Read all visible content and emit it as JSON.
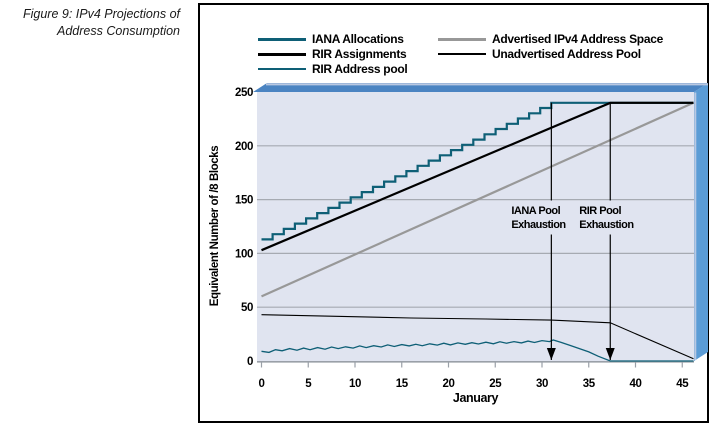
{
  "figure": {
    "caption_line1": "Figure 9: IPv4 Projections of",
    "caption_line2": "Address Consumption"
  },
  "legend": {
    "position": "top",
    "items": [
      {
        "label": "IANA Allocations",
        "color": "#0e5f76",
        "thickness": 3
      },
      {
        "label": "RIR Assignments",
        "color": "#000000",
        "thickness": 3
      },
      {
        "label": "RIR Address pool",
        "color": "#0e5f76",
        "thickness": 1.5
      },
      {
        "label": "Advertised IPv4 Address Space",
        "color": "#989898",
        "thickness": 3
      },
      {
        "label": "Unadvertised Address Pool",
        "color": "#000000",
        "thickness": 1.5
      }
    ]
  },
  "chart_data": {
    "type": "line",
    "title": "",
    "xlabel": "January",
    "ylabel": "Equivalent Number of /8 Blocks",
    "xlim": [
      0,
      46.2
    ],
    "ylim": [
      0,
      250
    ],
    "x_ticks": [
      0,
      5,
      10,
      15,
      20,
      25,
      30,
      35,
      40,
      45
    ],
    "y_ticks": [
      0,
      50,
      100,
      150,
      200,
      250
    ],
    "grid": "horizontal",
    "legend_position": "top",
    "plot_bg": "#e0e4f0",
    "grid_color": "#a6aab2",
    "axis_color": "#9aa0a8",
    "frame_top_color": "#4b84c2",
    "frame_right_color": "#5b9cd6",
    "frame_light_color": "#b9c8e2",
    "series": [
      {
        "name": "Advertised IPv4 Address Space",
        "color": "#989898",
        "width": 2.2,
        "style": "line",
        "points": [
          [
            0,
            60
          ],
          [
            46.2,
            240
          ]
        ]
      },
      {
        "name": "Unadvertised Address Pool",
        "color": "#000000",
        "width": 1.1,
        "style": "line",
        "points": [
          [
            0,
            43
          ],
          [
            8,
            41.5
          ],
          [
            16,
            40
          ],
          [
            24,
            39
          ],
          [
            31,
            38
          ],
          [
            37.3,
            35.5
          ],
          [
            46.2,
            2
          ]
        ]
      },
      {
        "name": "RIR Address pool",
        "color": "#0e5f76",
        "width": 1.3,
        "style": "line",
        "points": [
          [
            0,
            9
          ],
          [
            0.8,
            8
          ],
          [
            1.5,
            10.5
          ],
          [
            2.2,
            9.5
          ],
          [
            3,
            11.5
          ],
          [
            3.8,
            10
          ],
          [
            4.5,
            12
          ],
          [
            5.2,
            10.5
          ],
          [
            6,
            12.5
          ],
          [
            6.8,
            11
          ],
          [
            7.5,
            13
          ],
          [
            8.2,
            11.5
          ],
          [
            9,
            13.2
          ],
          [
            9.8,
            12
          ],
          [
            10.5,
            14
          ],
          [
            11.2,
            12.5
          ],
          [
            12,
            14.2
          ],
          [
            12.8,
            13
          ],
          [
            13.5,
            15
          ],
          [
            14.2,
            13.5
          ],
          [
            15,
            15.2
          ],
          [
            15.8,
            14
          ],
          [
            16.5,
            15.5
          ],
          [
            17.2,
            14.2
          ],
          [
            18,
            16
          ],
          [
            18.8,
            14.8
          ],
          [
            19.5,
            16.5
          ],
          [
            20.2,
            15
          ],
          [
            21,
            16.8
          ],
          [
            21.8,
            15.5
          ],
          [
            22.5,
            17
          ],
          [
            23.2,
            15.8
          ],
          [
            24,
            17.5
          ],
          [
            24.8,
            16
          ],
          [
            25.5,
            17.8
          ],
          [
            26.2,
            16.5
          ],
          [
            27,
            18
          ],
          [
            27.8,
            16.8
          ],
          [
            28.5,
            18.5
          ],
          [
            29.2,
            17.2
          ],
          [
            30,
            19
          ],
          [
            30.8,
            18
          ],
          [
            31.2,
            19.5
          ],
          [
            32,
            17.5
          ],
          [
            33,
            14.5
          ],
          [
            34,
            11.5
          ],
          [
            35,
            8.5
          ],
          [
            36,
            4.5
          ],
          [
            37.3,
            0
          ],
          [
            46.2,
            0
          ]
        ]
      },
      {
        "name": "IANA Allocations",
        "color": "#0e5f76",
        "width": 2.2,
        "style": "steps",
        "steps": 26,
        "points": [
          [
            0,
            113
          ],
          [
            31,
            240
          ],
          [
            46.2,
            240
          ]
        ]
      },
      {
        "name": "RIR Assignments",
        "color": "#000000",
        "width": 2.2,
        "style": "line",
        "points": [
          [
            0,
            103
          ],
          [
            37.3,
            240
          ],
          [
            46.2,
            240
          ]
        ]
      }
    ],
    "annotations": [
      {
        "line1": "IANA Pool",
        "line2": "Exhaustion",
        "x": 31,
        "y_top": 240,
        "text_offset_x": -40
      },
      {
        "line1": "RIR Pool",
        "line2": "Exhaustion",
        "x": 37.3,
        "y_top": 240,
        "text_offset_x": -31
      }
    ]
  }
}
